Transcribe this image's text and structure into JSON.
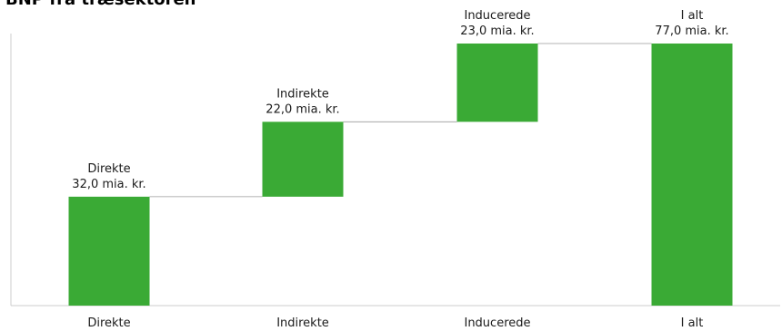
{
  "chart_data": {
    "type": "bar",
    "title": "BNP fra træsektoren",
    "categories": [
      "Direkte",
      "Indirekte",
      "Inducerede",
      "I alt"
    ],
    "values": [
      32.0,
      22.0,
      23.0,
      77.0
    ],
    "data_labels": [
      [
        "Direkte",
        "32,0 mia. kr."
      ],
      [
        "Indirekte",
        "22,0 mia. kr."
      ],
      [
        "Inducerede",
        "23,0 mia. kr."
      ],
      [
        "I alt",
        "77,0 mia. kr."
      ]
    ],
    "waterfall": true,
    "total_index": 3,
    "xlabel": "",
    "ylabel": "",
    "ylim": [
      0,
      77
    ],
    "grid": false,
    "legend": "none",
    "colors": {
      "bar": "#3aaa35",
      "connector": "#9a9a9a",
      "axis": "#cccccc"
    }
  }
}
